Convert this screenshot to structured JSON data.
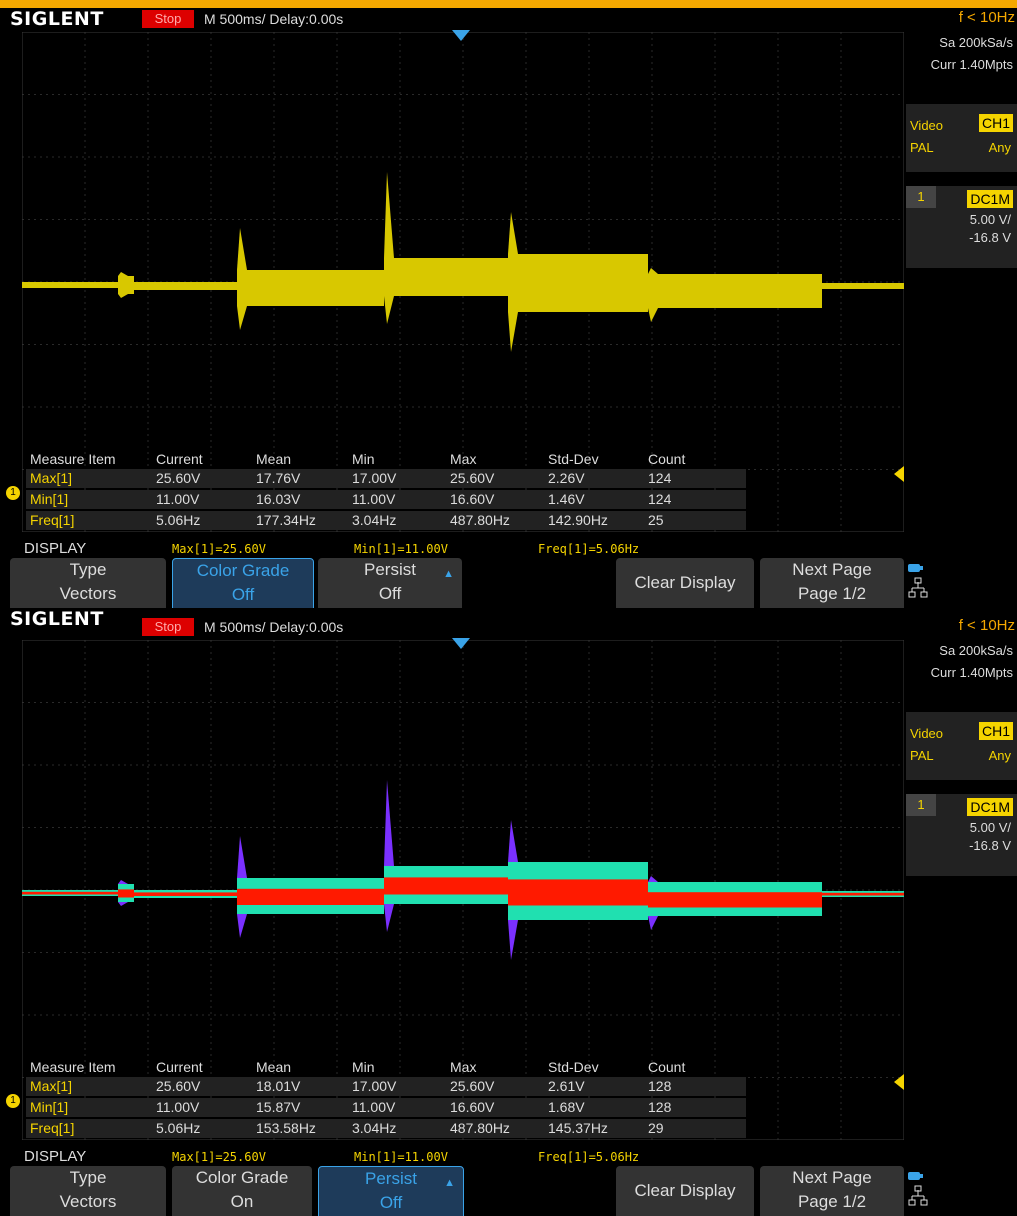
{
  "screens": [
    {
      "brand": "SIGLENT",
      "status": "Stop",
      "timebase": "M 500ms/  Delay:0.00s",
      "freq": "f < 10Hz",
      "sample_rate": "Sa 200kSa/s",
      "curr": "Curr 1.40Mpts",
      "trigger": {
        "type": "Video",
        "std": "PAL",
        "source": "CH1",
        "field": "Any"
      },
      "channel": {
        "num": "1",
        "coupling": "DC1M",
        "scale": "5.00 V/",
        "offset": "-16.8 V"
      },
      "measure_headers": [
        "Measure Item",
        "Current",
        "Mean",
        "Min",
        "Max",
        "Std-Dev",
        "Count"
      ],
      "measure_rows": [
        [
          "Max[1]",
          "25.60V",
          "17.76V",
          "17.00V",
          "25.60V",
          "2.26V",
          "124"
        ],
        [
          "Min[1]",
          "11.00V",
          "16.03V",
          "11.00V",
          "16.60V",
          "1.46V",
          "124"
        ],
        [
          "Freq[1]",
          "5.06Hz",
          "177.34Hz",
          "3.04Hz",
          "487.80Hz",
          "142.90Hz",
          "25"
        ]
      ],
      "display_label": "DISPLAY",
      "display_meas": [
        "Max[1]=25.60V",
        "Min[1]=11.00V",
        "Freq[1]=5.06Hz"
      ],
      "softkeys": [
        {
          "a": "Type",
          "b": "Vectors",
          "selected": false
        },
        {
          "a": "Color Grade",
          "b": "Off",
          "selected": true
        },
        {
          "a": "Persist",
          "b": "Off",
          "selected": false
        },
        {
          "a": "Clear Display",
          "b": "",
          "selected": false
        },
        {
          "a": "Next Page",
          "b": "Page 1/2",
          "selected": false
        }
      ],
      "color_grade": false
    },
    {
      "brand": "SIGLENT",
      "status": "Stop",
      "timebase": "M 500ms/  Delay:0.00s",
      "freq": "f < 10Hz",
      "sample_rate": "Sa 200kSa/s",
      "curr": "Curr 1.40Mpts",
      "trigger": {
        "type": "Video",
        "std": "PAL",
        "source": "CH1",
        "field": "Any"
      },
      "channel": {
        "num": "1",
        "coupling": "DC1M",
        "scale": "5.00 V/",
        "offset": "-16.8 V"
      },
      "measure_headers": [
        "Measure Item",
        "Current",
        "Mean",
        "Min",
        "Max",
        "Std-Dev",
        "Count"
      ],
      "measure_rows": [
        [
          "Max[1]",
          "25.60V",
          "18.01V",
          "17.00V",
          "25.60V",
          "2.61V",
          "128"
        ],
        [
          "Min[1]",
          "11.00V",
          "15.87V",
          "11.00V",
          "16.60V",
          "1.68V",
          "128"
        ],
        [
          "Freq[1]",
          "5.06Hz",
          "153.58Hz",
          "3.04Hz",
          "487.80Hz",
          "145.37Hz",
          "29"
        ]
      ],
      "display_label": "DISPLAY",
      "display_meas": [
        "Max[1]=25.60V",
        "Min[1]=11.00V",
        "Freq[1]=5.06Hz"
      ],
      "softkeys": [
        {
          "a": "Type",
          "b": "Vectors",
          "selected": false
        },
        {
          "a": "Color Grade",
          "b": "On",
          "selected": false
        },
        {
          "a": "Persist",
          "b": "Off",
          "selected": true
        },
        {
          "a": "Clear Display",
          "b": "",
          "selected": false
        },
        {
          "a": "Next Page",
          "b": "Page 1/2",
          "selected": false
        }
      ],
      "color_grade": true
    }
  ],
  "colors": {
    "accent": "#f5a800",
    "trace": "#f5d400",
    "select": "#3aa3e8",
    "stop": "#dd0000"
  }
}
